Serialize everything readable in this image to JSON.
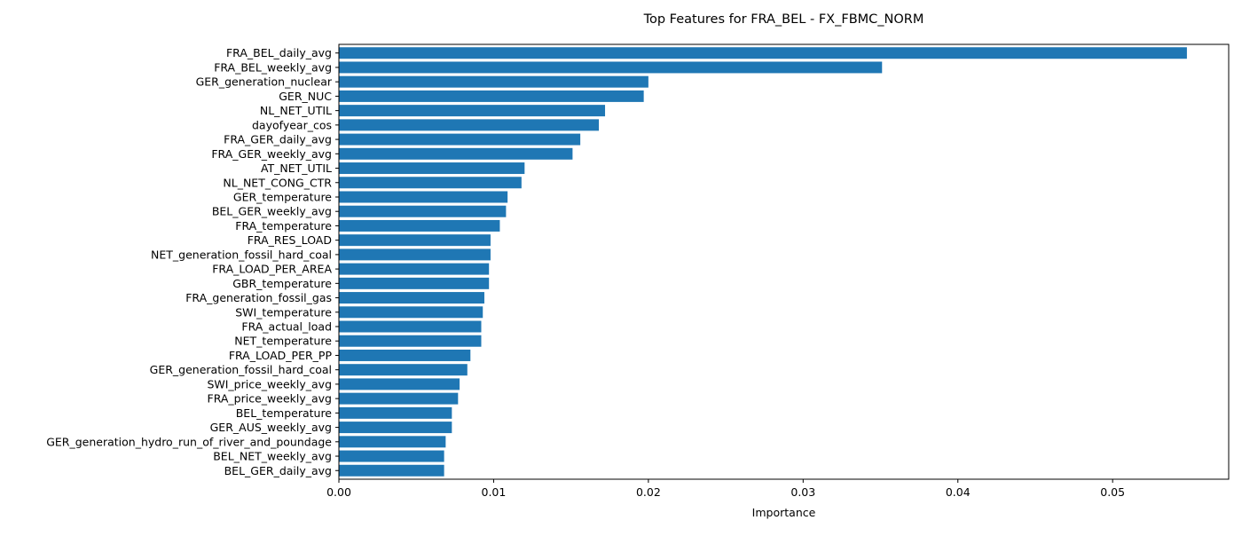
{
  "chart_data": {
    "type": "bar",
    "orientation": "horizontal",
    "title": "Top Features for FRA_BEL - FX_FBMC_NORM",
    "xlabel": "Importance",
    "ylabel": "",
    "xlim": [
      0.0,
      0.0575
    ],
    "xticks": [
      0.0,
      0.01,
      0.02,
      0.03,
      0.04,
      0.05
    ],
    "xtick_labels": [
      "0.00",
      "0.01",
      "0.02",
      "0.03",
      "0.04",
      "0.05"
    ],
    "grid": false,
    "legend": "none",
    "bar_color": "#1f77b4",
    "categories": [
      "FRA_BEL_daily_avg",
      "FRA_BEL_weekly_avg",
      "GER_generation_nuclear",
      "GER_NUC",
      "NL_NET_UTIL",
      "dayofyear_cos",
      "FRA_GER_daily_avg",
      "FRA_GER_weekly_avg",
      "AT_NET_UTIL",
      "NL_NET_CONG_CTR",
      "GER_temperature",
      "BEL_GER_weekly_avg",
      "FRA_temperature",
      "FRA_RES_LOAD",
      "NET_generation_fossil_hard_coal",
      "FRA_LOAD_PER_AREA",
      "GBR_temperature",
      "FRA_generation_fossil_gas",
      "SWI_temperature",
      "FRA_actual_load",
      "NET_temperature",
      "FRA_LOAD_PER_PP",
      "GER_generation_fossil_hard_coal",
      "SWI_price_weekly_avg",
      "FRA_price_weekly_avg",
      "BEL_temperature",
      "GER_AUS_weekly_avg",
      "GER_generation_hydro_run_of_river_and_poundage",
      "BEL_NET_weekly_avg",
      "BEL_GER_daily_avg"
    ],
    "values": [
      0.0548,
      0.0351,
      0.02,
      0.0197,
      0.0172,
      0.0168,
      0.0156,
      0.0151,
      0.012,
      0.0118,
      0.0109,
      0.0108,
      0.0104,
      0.0098,
      0.0098,
      0.0097,
      0.0097,
      0.0094,
      0.0093,
      0.0092,
      0.0092,
      0.0085,
      0.0083,
      0.0078,
      0.0077,
      0.0073,
      0.0073,
      0.0069,
      0.0068,
      0.0068
    ]
  }
}
